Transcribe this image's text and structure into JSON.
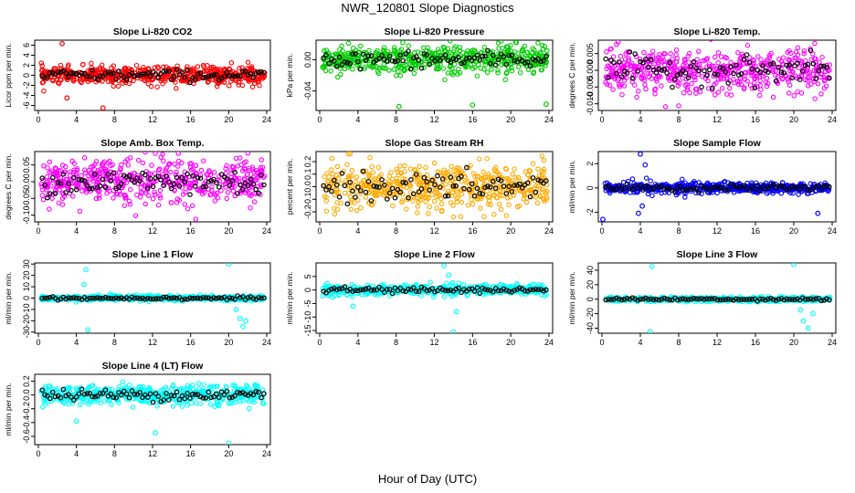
{
  "page": {
    "title": "NWR_120801  Slope Diagnostics",
    "x_axis_title": "Hour of Day (UTC)"
  },
  "chart_data": [
    {
      "type": "scatter",
      "title": "Slope Li-820 CO2",
      "ylabel": "Licor ppm per min.",
      "xlim": [
        0,
        24
      ],
      "ylim": [
        -7,
        7
      ],
      "x_ticks": [
        0,
        4,
        8,
        12,
        16,
        20,
        24
      ],
      "y_ticks": [
        -6,
        -4,
        -2,
        0,
        2,
        4,
        6
      ],
      "y_tick_labels": [
        "-6",
        "-4",
        "-2",
        "0",
        "2",
        "4",
        "6"
      ],
      "grid": false,
      "color": "#ff0000",
      "spread": 1.2,
      "outlier_hours": [
        2.5,
        3.0,
        6.8
      ],
      "outlier_values": [
        6.3,
        -4.5,
        -6.5
      ]
    },
    {
      "type": "scatter",
      "title": "Slope Li-820 Pressure",
      "ylabel": "kPa per min.",
      "xlim": [
        0,
        24
      ],
      "ylim": [
        -0.065,
        0.025
      ],
      "x_ticks": [
        0,
        4,
        8,
        12,
        16,
        20,
        24
      ],
      "y_ticks": [
        -0.04,
        0.0
      ],
      "y_tick_labels": [
        "-0.04",
        "0.00"
      ],
      "grid": false,
      "color": "#00cc00",
      "spread": 0.012,
      "outlier_hours": [
        8.3,
        16.0,
        23.7,
        8.7
      ],
      "outlier_values": [
        -0.06,
        -0.058,
        -0.057,
        0.022
      ]
    },
    {
      "type": "scatter",
      "title": "Slope Li-820 Temp.",
      "ylabel": "degrees C per min.",
      "xlim": [
        0,
        24
      ],
      "ylim": [
        -0.012,
        0.009
      ],
      "x_ticks": [
        0,
        4,
        8,
        12,
        16,
        20,
        24
      ],
      "y_ticks": [
        -0.01,
        -0.005,
        0.0,
        0.005
      ],
      "y_tick_labels": [
        "-0.010",
        "-0.005",
        "0.000",
        "0.005"
      ],
      "grid": false,
      "color": "#ff00ff",
      "spread": 0.0045,
      "outlier_hours": [],
      "outlier_values": []
    },
    {
      "type": "scatter",
      "title": "Slope Amb. Box Temp.",
      "ylabel": "degrees C per min.",
      "xlim": [
        0,
        24
      ],
      "ylim": [
        -0.12,
        0.09
      ],
      "x_ticks": [
        0,
        4,
        8,
        12,
        16,
        20,
        24
      ],
      "y_ticks": [
        -0.1,
        -0.05,
        0.0,
        0.05
      ],
      "y_tick_labels": [
        "-0.10",
        "-0.05",
        "0.00",
        "0.05"
      ],
      "grid": false,
      "color": "#ff00ff",
      "spread": 0.045,
      "outlier_hours": [],
      "outlier_values": []
    },
    {
      "type": "scatter",
      "title": "Slope Gas Stream RH",
      "ylabel": "percent per min.",
      "xlim": [
        0,
        24
      ],
      "ylim": [
        -0.28,
        0.28
      ],
      "x_ticks": [
        0,
        4,
        8,
        12,
        16,
        20,
        24
      ],
      "y_ticks": [
        -0.2,
        -0.1,
        0.0,
        0.1,
        0.2
      ],
      "y_tick_labels": [
        "-0.2",
        "-0.1",
        "0.0",
        "0.1",
        "0.2"
      ],
      "grid": false,
      "color": "#ffaa00",
      "spread": 0.12,
      "outlier_hours": [],
      "outlier_values": []
    },
    {
      "type": "scatter",
      "title": "Slope Sample Flow",
      "ylabel": "ml/min per min.",
      "xlim": [
        0,
        24
      ],
      "ylim": [
        -2.8,
        3.0
      ],
      "x_ticks": [
        0,
        4,
        8,
        12,
        16,
        20,
        24
      ],
      "y_ticks": [
        -2,
        0,
        2
      ],
      "y_tick_labels": [
        "-2",
        "0",
        "2"
      ],
      "grid": false,
      "color": "#0000ff",
      "spread": 0.3,
      "outlier_hours": [
        0.1,
        4.0,
        4.5,
        4.2,
        3.8,
        22.5
      ],
      "outlier_values": [
        -2.6,
        2.8,
        1.9,
        -1.5,
        -2.1,
        -2.1
      ]
    },
    {
      "type": "scatter",
      "title": "Slope Line 1 Flow",
      "ylabel": "ml/min per min.",
      "xlim": [
        0,
        24
      ],
      "ylim": [
        -31,
        31
      ],
      "x_ticks": [
        0,
        4,
        8,
        12,
        16,
        20,
        24
      ],
      "y_ticks": [
        -30,
        -20,
        -10,
        0,
        10,
        20,
        30
      ],
      "y_tick_labels": [
        "-30",
        "-20",
        "-10",
        "0",
        "10",
        "20",
        "30"
      ],
      "grid": false,
      "color": "#00ffff",
      "spread": 1.5,
      "outlier_hours": [
        5.0,
        5.2,
        4.8,
        20.0,
        21.5,
        21.2,
        20.8,
        21.8
      ],
      "outlier_values": [
        25,
        -28,
        12,
        30,
        -25,
        -18,
        -10,
        -20
      ]
    },
    {
      "type": "scatter",
      "title": "Slope Line 2 Flow",
      "ylabel": "ml/min per min.",
      "xlim": [
        0,
        24
      ],
      "ylim": [
        -16,
        10
      ],
      "x_ticks": [
        0,
        4,
        8,
        12,
        16,
        20,
        24
      ],
      "y_ticks": [
        -15,
        -10,
        -5,
        0,
        5
      ],
      "y_tick_labels": [
        "-15",
        "-10",
        "-5",
        "0",
        "5"
      ],
      "grid": false,
      "color": "#00ffff",
      "spread": 1.2,
      "outlier_hours": [
        14.0,
        13.0,
        13.5,
        3.5,
        14.3
      ],
      "outlier_values": [
        -15.5,
        9.0,
        5.5,
        -6.0,
        -8.0
      ]
    },
    {
      "type": "scatter",
      "title": "Slope Line 3 Flow",
      "ylabel": "ml/min per min.",
      "xlim": [
        0,
        24
      ],
      "ylim": [
        -47,
        50
      ],
      "x_ticks": [
        0,
        4,
        8,
        12,
        16,
        20,
        24
      ],
      "y_ticks": [
        -40,
        -20,
        0,
        20,
        40
      ],
      "y_tick_labels": [
        "-40",
        "-20",
        "0",
        "20",
        "40"
      ],
      "grid": false,
      "color": "#00ffff",
      "spread": 2.0,
      "outlier_hours": [
        5.2,
        5.0,
        20.0,
        21.0,
        21.5,
        22.0,
        20.7
      ],
      "outlier_values": [
        45,
        -45,
        48,
        -30,
        -40,
        -20,
        -15
      ]
    },
    {
      "type": "scatter",
      "title": "Slope Line 4 (LT) Flow",
      "ylabel": "ml/min per min.",
      "xlim": [
        0,
        24
      ],
      "ylim": [
        -0.72,
        0.3
      ],
      "x_ticks": [
        0,
        4,
        8,
        12,
        16,
        20,
        24
      ],
      "y_ticks": [
        -0.6,
        -0.4,
        -0.2,
        0.0,
        0.2
      ],
      "y_tick_labels": [
        "-0.6",
        "-0.4",
        "-0.2",
        "0.0",
        "0.2"
      ],
      "grid": false,
      "color": "#00ffff",
      "spread": 0.09,
      "outlier_hours": [
        12.3,
        20.0,
        4.0
      ],
      "outlier_values": [
        -0.55,
        -0.7,
        -0.38
      ]
    }
  ]
}
